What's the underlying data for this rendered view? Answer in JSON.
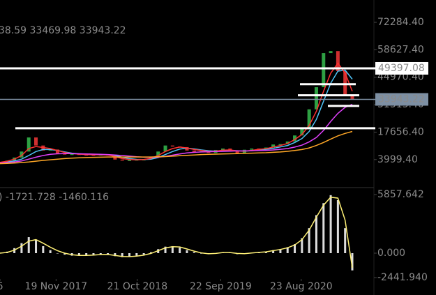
{
  "chart_data": [
    {
      "type": "line",
      "header": "38.59 33469.98 33943.22",
      "ylim": [
        -9600,
        83400
      ],
      "yticks": [
        {
          "value": 72284.4,
          "label": "72284.40"
        },
        {
          "value": 58627.4,
          "label": "58627.40"
        },
        {
          "value": 44970.4,
          "label": "44970.40"
        },
        {
          "value": 31313.4,
          "label": "31313.40"
        },
        {
          "value": 17656.4,
          "label": "17656.40"
        },
        {
          "value": 3999.4,
          "label": "3999.40"
        }
      ],
      "xlim": [
        0,
        49
      ],
      "xticks": [
        {
          "value": 0,
          "label": "6"
        },
        {
          "value": 7.8,
          "label": "19 Nov 2017"
        },
        {
          "value": 19.1,
          "label": "21 Oct 2018"
        },
        {
          "value": 30.7,
          "label": "22 Sep 2019"
        },
        {
          "value": 41.9,
          "label": "23 Aug 2020"
        }
      ],
      "up_color": "#2ea043",
      "down_color": "#d03030",
      "values": [
        2600,
        3500,
        5000,
        8000,
        15000,
        11000,
        8500,
        9000,
        7000,
        6500,
        6800,
        6500,
        6400,
        6300,
        6500,
        6400,
        4000,
        3600,
        3800,
        4000,
        4100,
        5200,
        8000,
        11000,
        10500,
        10200,
        8500,
        7800,
        8200,
        7300,
        8800,
        9500,
        8600,
        7000,
        8900,
        9500,
        9200,
        10000,
        11500,
        11700,
        13000,
        16000,
        19500,
        29000,
        40000,
        57000,
        58000,
        48000,
        36000,
        33943.22
      ],
      "series": [
        {
          "color": "#4fc3f7",
          "values": [
            2500,
            2800,
            3300,
            4200,
            6000,
            8000,
            9000,
            9000,
            8500,
            7800,
            7200,
            6900,
            6700,
            6500,
            6400,
            6400,
            6000,
            5200,
            4500,
            4100,
            4000,
            4200,
            5000,
            6500,
            8000,
            9200,
            9700,
            9300,
            8800,
            8400,
            8200,
            8300,
            8500,
            8400,
            8200,
            8400,
            8800,
            9100,
            9600,
            10300,
            11000,
            12500,
            14500,
            18000,
            24000,
            33000,
            42000,
            48000,
            48500,
            44000
          ]
        },
        {
          "color": "#ff3030",
          "values": [
            2600,
            3200,
            4200,
            6000,
            9500,
            10500,
            10000,
            9500,
            8500,
            7500,
            7000,
            6700,
            6500,
            6400,
            6400,
            6300,
            5500,
            4500,
            4000,
            3900,
            4000,
            4600,
            6000,
            8000,
            9500,
            10200,
            9800,
            9000,
            8500,
            8000,
            8200,
            8700,
            8800,
            8300,
            8200,
            8600,
            9100,
            9400,
            10200,
            11000,
            12000,
            14000,
            16500,
            21000,
            28000,
            38000,
            47000,
            52000,
            47000,
            38000
          ]
        },
        {
          "color": "#e040fb",
          "values": [
            2300,
            2500,
            2800,
            3300,
            4200,
            5200,
            6000,
            6600,
            6900,
            7000,
            7000,
            6900,
            6800,
            6700,
            6600,
            6500,
            6300,
            6000,
            5700,
            5400,
            5200,
            5100,
            5200,
            5600,
            6200,
            6800,
            7300,
            7600,
            7800,
            7900,
            8000,
            8100,
            8200,
            8300,
            8300,
            8400,
            8500,
            8600,
            8800,
            9100,
            9500,
            10200,
            11200,
            12800,
            15000,
            18500,
            23000,
            27000,
            30000,
            31500
          ]
        },
        {
          "color": "#ffa726",
          "values": [
            2000,
            2100,
            2300,
            2500,
            2800,
            3200,
            3600,
            3900,
            4200,
            4500,
            4700,
            4900,
            5000,
            5100,
            5200,
            5300,
            5300,
            5300,
            5300,
            5300,
            5300,
            5300,
            5400,
            5500,
            5700,
            5900,
            6100,
            6300,
            6500,
            6600,
            6700,
            6800,
            6900,
            7000,
            7100,
            7200,
            7300,
            7400,
            7600,
            7800,
            8100,
            8500,
            9000,
            9800,
            11000,
            12500,
            14200,
            15800,
            17000,
            18000
          ]
        }
      ],
      "price_lines": [
        {
          "value": 49397.08,
          "color": "#ffffff",
          "text_color": "#000000"
        },
        {
          "value": 33943.22,
          "color": "#7d8fa3",
          "text_color": "#ffffff"
        }
      ],
      "level_lines": [
        41500,
        36000,
        30700,
        19600
      ]
    },
    {
      "type": "bar",
      "header": ") -1721.728 -1460.116",
      "ylim": [
        -2580,
        6485
      ],
      "yticks": [
        {
          "value": 5857.642,
          "label": "5857.642"
        },
        {
          "value": 0,
          "label": "0.000"
        },
        {
          "value": -2441.94,
          "label": "-2441.940"
        }
      ],
      "xlim": [
        0,
        49
      ],
      "color": "#dddddd",
      "values": [
        50,
        150,
        500,
        1000,
        1600,
        1300,
        700,
        300,
        0,
        -150,
        -250,
        -250,
        -200,
        -150,
        -100,
        -150,
        -300,
        -400,
        -350,
        -250,
        -150,
        100,
        400,
        650,
        700,
        550,
        300,
        100,
        -50,
        -100,
        0,
        100,
        50,
        -100,
        -50,
        50,
        100,
        150,
        300,
        400,
        600,
        900,
        1500,
        2500,
        3800,
        5000,
        5800,
        5300,
        2500,
        -1721.728
      ],
      "series": [
        {
          "color": "#fff176",
          "values": [
            0,
            80,
            300,
            700,
            1200,
            1350,
            1000,
            600,
            250,
            0,
            -150,
            -230,
            -230,
            -190,
            -140,
            -130,
            -220,
            -330,
            -350,
            -300,
            -200,
            -30,
            250,
            520,
            650,
            620,
            420,
            200,
            30,
            -60,
            -30,
            60,
            60,
            -30,
            -50,
            20,
            80,
            130,
            250,
            370,
            540,
            820,
            1350,
            2300,
            3600,
            4800,
            5600,
            5500,
            3300,
            -1460.116
          ]
        }
      ]
    }
  ]
}
